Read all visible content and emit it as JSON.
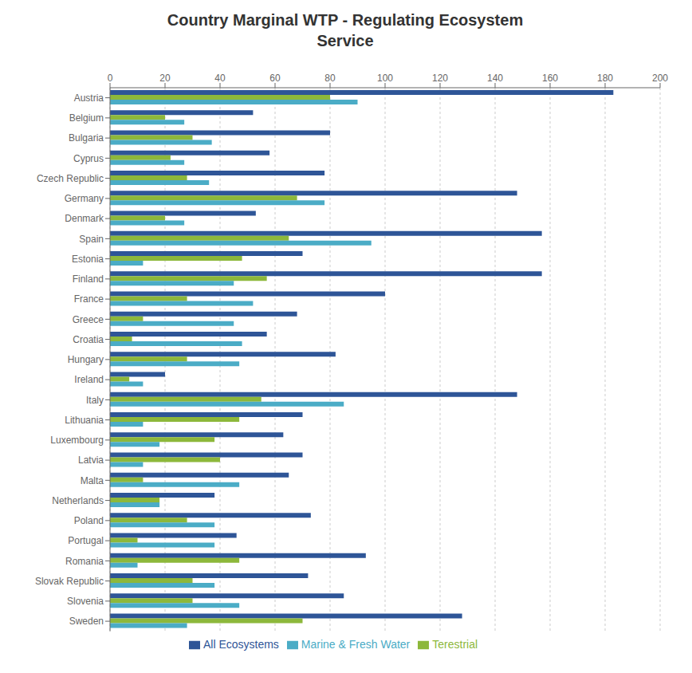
{
  "chart_data": {
    "type": "bar",
    "orientation": "horizontal",
    "title": "Country Marginal WTP - Regulating Ecosystem\nService",
    "categories": [
      "Austria",
      "Belgium",
      "Bulgaria",
      "Cyprus",
      "Czech Republic",
      "Germany",
      "Denmark",
      "Spain",
      "Estonia",
      "Finland",
      "France",
      "Greece",
      "Croatia",
      "Hungary",
      "Ireland",
      "Italy",
      "Lithuania",
      "Luxembourg",
      "Latvia",
      "Malta",
      "Netherlands",
      "Poland",
      "Portugal",
      "Romania",
      "Slovak Republic",
      "Slovenia",
      "Sweden"
    ],
    "series": [
      {
        "name": "All Ecosystems",
        "color": "#2E5597",
        "values": [
          183,
          52,
          80,
          58,
          78,
          148,
          53,
          157,
          70,
          157,
          100,
          68,
          57,
          82,
          20,
          148,
          70,
          63,
          70,
          65,
          38,
          73,
          46,
          93,
          72,
          85,
          128
        ]
      },
      {
        "name": "Terestrial",
        "color": "#8DB83B",
        "values": [
          80,
          20,
          30,
          22,
          28,
          68,
          20,
          65,
          48,
          57,
          28,
          12,
          8,
          28,
          7,
          55,
          47,
          38,
          40,
          12,
          18,
          28,
          10,
          47,
          30,
          30,
          70
        ]
      },
      {
        "name": "Marine & Fresh Water",
        "color": "#4BACC6",
        "values": [
          90,
          27,
          37,
          27,
          36,
          78,
          27,
          95,
          12,
          45,
          52,
          45,
          48,
          47,
          12,
          85,
          12,
          18,
          12,
          47,
          18,
          38,
          38,
          10,
          38,
          47,
          28
        ]
      }
    ],
    "xlim": [
      0,
      200
    ],
    "xticks": [
      0,
      20,
      40,
      60,
      80,
      100,
      120,
      140,
      160,
      180,
      200
    ],
    "grid": true,
    "legend": "bottom"
  }
}
